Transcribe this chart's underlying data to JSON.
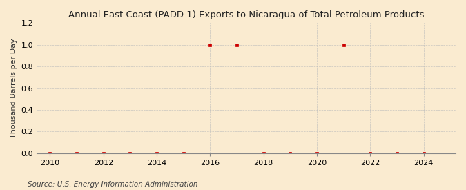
{
  "title": "Annual East Coast (PADD 1) Exports to Nicaragua of Total Petroleum Products",
  "ylabel": "Thousand Barrels per Day",
  "source": "Source: U.S. Energy Information Administration",
  "background_color": "#faebd0",
  "years": [
    2010,
    2011,
    2012,
    2013,
    2014,
    2015,
    2016,
    2017,
    2018,
    2019,
    2020,
    2021,
    2022,
    2023,
    2024
  ],
  "values": [
    0.0,
    0.0,
    0.0,
    0.0,
    0.0,
    0.0,
    1.0,
    1.0,
    0.0,
    0.0,
    0.0,
    1.0,
    0.0,
    0.0,
    0.0
  ],
  "marker_color": "#cc0000",
  "xlim": [
    2009.5,
    2025.2
  ],
  "ylim": [
    0.0,
    1.2
  ],
  "yticks": [
    0.0,
    0.2,
    0.4,
    0.6,
    0.8,
    1.0,
    1.2
  ],
  "xticks": [
    2010,
    2012,
    2014,
    2016,
    2018,
    2020,
    2022,
    2024
  ],
  "grid_color": "#bbbbbb",
  "title_fontsize": 9.5,
  "axis_fontsize": 8.0,
  "source_fontsize": 7.5
}
